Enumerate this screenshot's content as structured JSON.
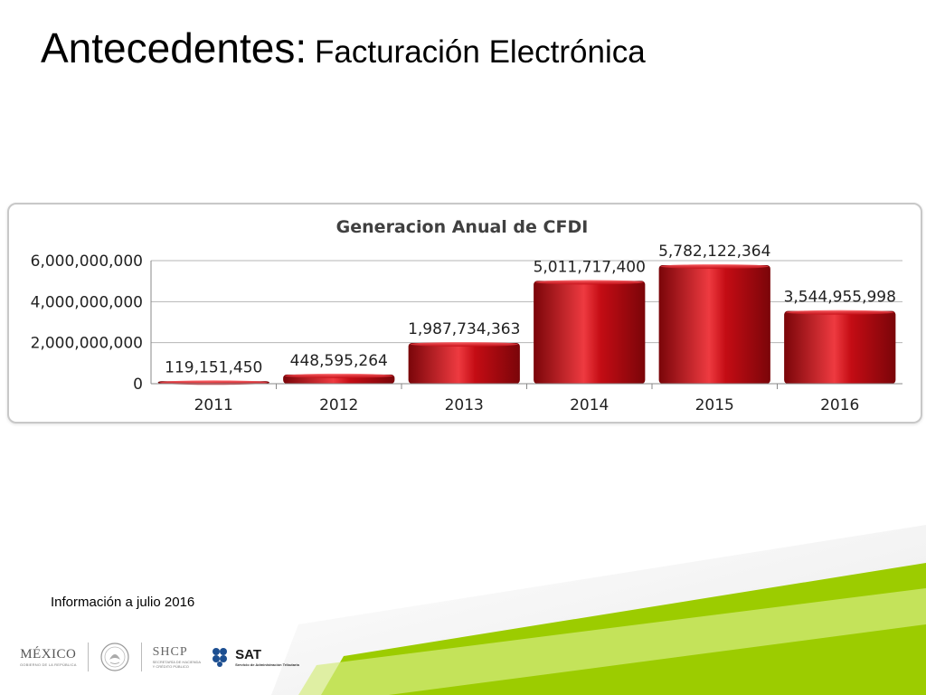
{
  "slide": {
    "title_main": "Antecedentes:",
    "title_sub": "Facturación Electrónica",
    "footnote": "Información a julio 2016"
  },
  "logos": {
    "mexico": "MÉXICO",
    "mexico_sub": "GOBIERNO DE LA REPÚBLICA",
    "shcp": "SHCP",
    "shcp_sub_1": "SECRETARÍA DE HACIENDA",
    "shcp_sub_2": "Y CRÉDITO PÚBLICO",
    "sat": "SAT",
    "sat_sub": "Servicio de Administración Tributaria"
  },
  "colors": {
    "bar": "#c40c14",
    "bar_dark": "#7a0509",
    "bar_light": "#ee3a40",
    "accent_green": "#9ccc00",
    "accent_green_light": "#d6ec80"
  },
  "chart_data": {
    "type": "bar",
    "title": "Generacion Anual de CFDI",
    "categories": [
      "2011",
      "2012",
      "2013",
      "2014",
      "2015",
      "2016"
    ],
    "values": [
      119151450,
      448595264,
      1987734363,
      5011717400,
      5782122364,
      3544955998
    ],
    "data_labels": [
      "119,151,450",
      "448,595,264",
      "1,987,734,363",
      "5,011,717,400",
      "5,782,122,364",
      "3,544,955,998"
    ],
    "yticks": [
      0,
      2000000000,
      4000000000,
      6000000000
    ],
    "ytick_labels": [
      "0",
      "2,000,000,000",
      "4,000,000,000",
      "6,000,000,000"
    ],
    "ylim": [
      0,
      6000000000
    ],
    "xlabel": "",
    "ylabel": "",
    "grid": true,
    "legend": "none"
  }
}
